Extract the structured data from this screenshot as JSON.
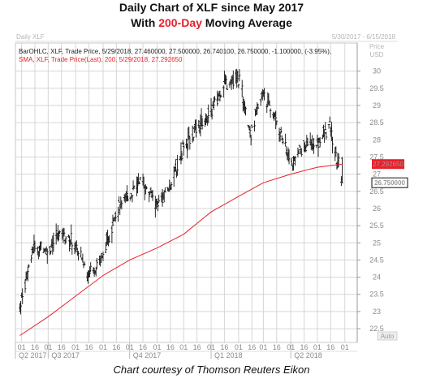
{
  "header": {
    "title": "Daily Chart of XLF since May 2017",
    "subtitle_prefix": "With ",
    "subtitle_highlight": "200-Day",
    "subtitle_suffix": " Moving Average",
    "highlight_color": "#e8202a"
  },
  "caption": "Chart courtesy of Thomson Reuters Eikon",
  "chart_data": {
    "type": "ohlc",
    "panel_title": "Daily XLF",
    "date_range": "5/30/2017 - 6/15/2018",
    "y_header_1": "Price",
    "y_header_2": "USD",
    "legend": [
      {
        "text": "BarOHLC, XLF, Trade Price, 5/29/2018, 27.460000, 27.500000, 26.740100, 26.750000, -1.100000, (-3.95%),",
        "color": "#222222"
      },
      {
        "text": "SMA, XLF, Trade Price(Last), 200, 5/29/2018, 27.292650",
        "color": "#e8202a"
      }
    ],
    "ylim": [
      22.1,
      30.7
    ],
    "yticks": [
      "22.5",
      "23",
      "23.5",
      "24",
      "24.5",
      "25",
      "25.5",
      "26",
      "26.5",
      "27",
      "27.5",
      "28",
      "28.5",
      "29",
      "29.5",
      "30"
    ],
    "price_tag": {
      "label": "26.750000",
      "value": 26.75
    },
    "sma_tag": {
      "label": "27.292650",
      "value": 27.29265
    },
    "auto_label": "Auto",
    "month_labels": [
      "01",
      "16",
      "01",
      "16",
      "01",
      "16",
      "01",
      "16",
      "01",
      "16",
      "01",
      "16",
      "01",
      "16",
      "01",
      "16",
      "01",
      "16",
      "01",
      "16",
      "01",
      "16",
      "01",
      "16",
      "01",
      "16",
      "01"
    ],
    "quarter_labels": [
      "Q2 2017",
      "Q3 2017",
      "Q4 2017",
      "Q1 2018",
      "Q2 2018"
    ],
    "price_series": {
      "name": "XLF",
      "x": [
        "2017-05-30",
        "2017-06-15",
        "2017-07-01",
        "2017-07-15",
        "2017-08-01",
        "2017-08-15",
        "2017-09-01",
        "2017-09-15",
        "2017-10-01",
        "2017-10-15",
        "2017-11-01",
        "2017-11-15",
        "2017-12-01",
        "2017-12-15",
        "2018-01-01",
        "2018-01-15",
        "2018-02-01",
        "2018-02-15",
        "2018-03-01",
        "2018-03-15",
        "2018-04-01",
        "2018-04-15",
        "2018-05-01",
        "2018-05-15",
        "2018-05-29"
      ],
      "y": [
        23.2,
        24.9,
        24.8,
        25.3,
        24.9,
        24.1,
        24.6,
        25.9,
        26.4,
        26.8,
        26.1,
        26.6,
        27.8,
        28.3,
        28.8,
        29.6,
        29.8,
        28.2,
        29.4,
        28.6,
        27.3,
        27.8,
        27.9,
        28.4,
        26.75
      ]
    },
    "sma_series": {
      "name": "SMA 200",
      "color": "#e8202a",
      "x": [
        "2017-05-30",
        "2017-07-01",
        "2017-08-01",
        "2017-09-01",
        "2017-10-01",
        "2017-11-01",
        "2017-12-01",
        "2018-01-01",
        "2018-02-01",
        "2018-03-01",
        "2018-04-01",
        "2018-05-01",
        "2018-05-29"
      ],
      "y": [
        22.3,
        22.85,
        23.45,
        24.05,
        24.5,
        24.85,
        25.25,
        25.9,
        26.35,
        26.75,
        27.0,
        27.2,
        27.29
      ]
    },
    "grid": true
  }
}
